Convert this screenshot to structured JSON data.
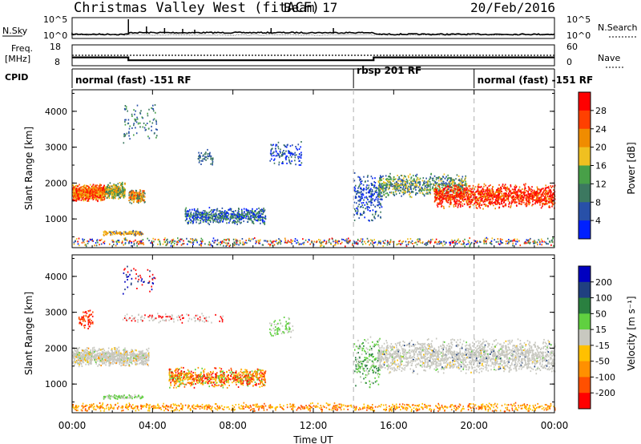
{
  "header": {
    "title": "Christmas Valley West (fitACF)",
    "beam": "Beam 17",
    "date": "20/Feb/2016"
  },
  "colors": {
    "power_scale": [
      "#0020ff",
      "#2850a8",
      "#3c7860",
      "#48a048",
      "#f0c020",
      "#f08c00",
      "#ff4000",
      "#ff0000"
    ],
    "velocity_scale": [
      "#ff0000",
      "#ff5000",
      "#ff9000",
      "#ffc000",
      "#c8c8c0",
      "#60d040",
      "#2a8040",
      "#204080",
      "#0000c0"
    ],
    "ground_scatter": "#c8c8c0",
    "dashed_separator": "#b0b0b0"
  },
  "chart_data": [
    {
      "type": "line",
      "name": "noise-panel",
      "left_label": "N.Sky",
      "right_label": "N.Search",
      "left_ticks": [
        "10^5",
        "10^0"
      ],
      "right_ticks": [
        "10^5",
        "10^0"
      ]
    },
    {
      "type": "line",
      "name": "frequency-panel",
      "left_label_1": "Freq.",
      "left_label_2": "[MHz]",
      "right_label": "Nave",
      "left_ticks": [
        "18",
        "8"
      ],
      "right_ticks": [
        "60",
        "0"
      ],
      "freq_x": [
        0,
        2.8,
        2.8,
        15.0,
        15.0,
        24
      ],
      "freq_y": [
        12.0,
        12.0,
        10.6,
        10.6,
        12.0,
        12.0
      ],
      "nave_value": 30
    },
    {
      "type": "table",
      "name": "cpid-bar",
      "label": "CPID",
      "segments": [
        {
          "label": "normal (fast) -151 RF",
          "start": 0,
          "end": 14
        },
        {
          "label": "rbsp 201 RF",
          "start": 14,
          "end": 20
        },
        {
          "label": "normal (fast) -151 RF",
          "start": 20,
          "end": 24
        }
      ]
    },
    {
      "type": "heatmap",
      "name": "power-panel",
      "ylabel": "Slant Range [km]",
      "ylim": [
        200,
        4600
      ],
      "yticks": [
        "1000",
        "2000",
        "3000",
        "4000"
      ],
      "colorbar_label": "Power [dB]",
      "colorbar_ticks": [
        "4",
        "8",
        "12",
        "16",
        "20",
        "24",
        "28"
      ]
    },
    {
      "type": "heatmap",
      "name": "velocity-panel",
      "ylabel": "Slant Range [km]",
      "ylim": [
        200,
        4600
      ],
      "yticks": [
        "1000",
        "2000",
        "3000",
        "4000"
      ],
      "colorbar_label": "Velocity [m s⁻¹]",
      "colorbar_ticks": [
        "200",
        "100",
        "50",
        "15",
        "-15",
        "-50",
        "-100",
        "-200"
      ]
    }
  ],
  "x_axis": {
    "label": "Time UT",
    "ticks": [
      "00:00",
      "04:00",
      "08:00",
      "12:00",
      "16:00",
      "20:00",
      "00:00"
    ],
    "xlim": [
      0,
      24
    ]
  }
}
